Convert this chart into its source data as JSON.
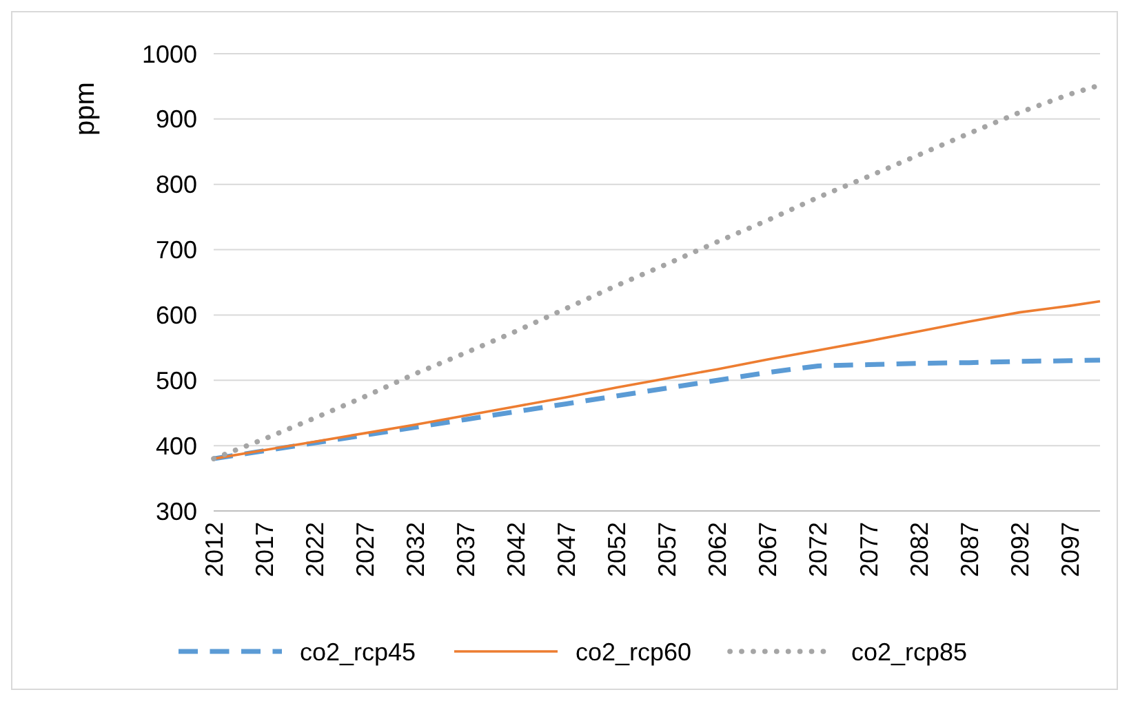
{
  "chart_data": {
    "type": "line",
    "ylabel": "ppm",
    "xlim": [
      2012,
      2100
    ],
    "xticks": [
      2012,
      2017,
      2022,
      2027,
      2032,
      2037,
      2042,
      2047,
      2052,
      2057,
      2062,
      2067,
      2072,
      2077,
      2082,
      2087,
      2092,
      2097
    ],
    "ylim": [
      300,
      1000
    ],
    "yticks": [
      300,
      400,
      500,
      600,
      700,
      800,
      900,
      1000
    ],
    "grid": "y",
    "legend": "bottom",
    "marker": "none",
    "x": [
      2012,
      2017,
      2022,
      2027,
      2032,
      2037,
      2042,
      2047,
      2052,
      2057,
      2062,
      2067,
      2072,
      2077,
      2082,
      2087,
      2092,
      2097,
      2100
    ],
    "series": [
      {
        "name": "co2_rcp45",
        "color": "#5b9bd5",
        "line_style": "dashed",
        "values": [
          380,
          392,
          404,
          416,
          428,
          440,
          452,
          464,
          476,
          488,
          500,
          512,
          522,
          524,
          526,
          527,
          529,
          530,
          531
        ]
      },
      {
        "name": "co2_rcp60",
        "color": "#ed7d31",
        "line_style": "solid",
        "values": [
          380,
          393,
          406,
          419,
          432,
          446,
          460,
          474,
          489,
          503,
          517,
          532,
          546,
          560,
          575,
          590,
          604,
          614,
          621
        ]
      },
      {
        "name": "co2_rcp85",
        "color": "#a5a5a5",
        "line_style": "dotted",
        "values": [
          380,
          410,
          442,
          475,
          510,
          542,
          575,
          610,
          645,
          678,
          712,
          745,
          780,
          812,
          845,
          878,
          910,
          938,
          952
        ]
      }
    ]
  }
}
